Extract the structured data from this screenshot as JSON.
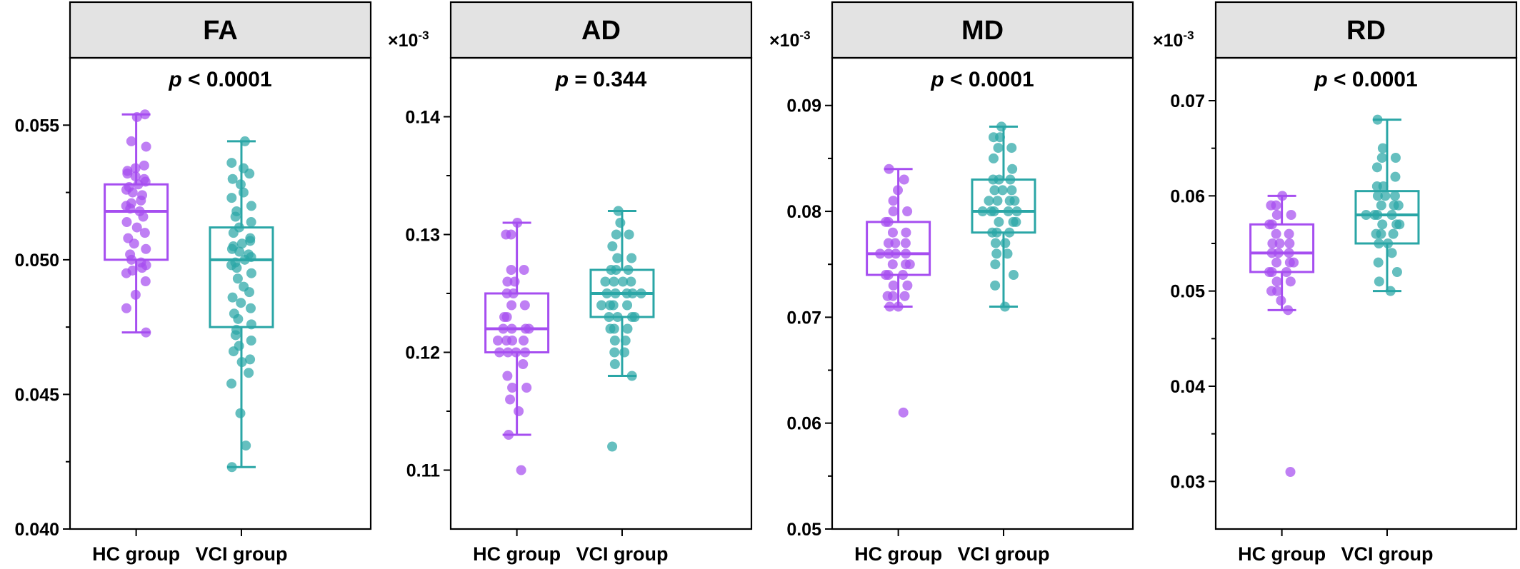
{
  "chart_data": [
    {
      "type": "box",
      "title": "FA",
      "annotation": "< 0.0001",
      "annotation_prefix": "p",
      "scale_label": "",
      "categories": [
        "HC group",
        "VCI group"
      ],
      "ylim": [
        0.04,
        0.0575
      ],
      "yticks": [
        0.04,
        0.045,
        0.05,
        0.055
      ],
      "ytick_labels": [
        "0.040",
        "0.045",
        "0.050",
        "0.055"
      ],
      "minor_yticks": [
        0.0425,
        0.0475,
        0.0525
      ],
      "series": [
        {
          "name": "HC group",
          "color": "#a64ef0",
          "whisker_low": 0.0473,
          "q1": 0.05,
          "median": 0.0518,
          "q3": 0.0528,
          "whisker_high": 0.0554,
          "points": [
            0.0554,
            0.0553,
            0.0544,
            0.0542,
            0.0535,
            0.0534,
            0.0533,
            0.0532,
            0.0531,
            0.053,
            0.0529,
            0.0528,
            0.0527,
            0.0526,
            0.0525,
            0.0524,
            0.0522,
            0.0521,
            0.052,
            0.0519,
            0.0518,
            0.0516,
            0.0514,
            0.0512,
            0.051,
            0.0508,
            0.0506,
            0.0504,
            0.0502,
            0.05,
            0.0499,
            0.0498,
            0.0497,
            0.0496,
            0.0495,
            0.0492,
            0.0487,
            0.0482,
            0.0473
          ]
        },
        {
          "name": "VCI group",
          "color": "#2aa6a6",
          "whisker_low": 0.0423,
          "q1": 0.0475,
          "median": 0.05,
          "q3": 0.0512,
          "whisker_high": 0.0544,
          "points": [
            0.0544,
            0.0536,
            0.0534,
            0.0532,
            0.053,
            0.0528,
            0.0525,
            0.0523,
            0.052,
            0.0518,
            0.0516,
            0.0514,
            0.0512,
            0.051,
            0.0508,
            0.0507,
            0.0506,
            0.0505,
            0.0504,
            0.0503,
            0.0502,
            0.0501,
            0.05,
            0.0499,
            0.0498,
            0.0497,
            0.0495,
            0.0493,
            0.049,
            0.0488,
            0.0486,
            0.0484,
            0.0482,
            0.048,
            0.0478,
            0.0476,
            0.0474,
            0.0472,
            0.047,
            0.0468,
            0.0466,
            0.0463,
            0.0462,
            0.0458,
            0.0454,
            0.0443,
            0.0431,
            0.0423
          ]
        }
      ]
    },
    {
      "type": "box",
      "title": "AD",
      "annotation": "= 0.344",
      "annotation_prefix": "p",
      "scale_label": "×10",
      "scale_exponent": "-3",
      "categories": [
        "HC group",
        "VCI group"
      ],
      "ylim": [
        0.105,
        0.145
      ],
      "yticks": [
        0.11,
        0.12,
        0.13,
        0.14
      ],
      "ytick_labels": [
        "0.11",
        "0.12",
        "0.13",
        "0.14"
      ],
      "minor_yticks": [
        0.115,
        0.125,
        0.135
      ],
      "series": [
        {
          "name": "HC group",
          "color": "#a64ef0",
          "whisker_low": 0.113,
          "q1": 0.12,
          "median": 0.122,
          "q3": 0.125,
          "whisker_high": 0.131,
          "points": [
            0.131,
            0.13,
            0.13,
            0.127,
            0.127,
            0.126,
            0.126,
            0.125,
            0.125,
            0.124,
            0.124,
            0.123,
            0.123,
            0.122,
            0.122,
            0.122,
            0.122,
            0.121,
            0.121,
            0.121,
            0.121,
            0.12,
            0.12,
            0.12,
            0.12,
            0.119,
            0.118,
            0.117,
            0.117,
            0.116,
            0.115,
            0.113,
            0.11
          ]
        },
        {
          "name": "VCI group",
          "color": "#2aa6a6",
          "whisker_low": 0.118,
          "q1": 0.123,
          "median": 0.125,
          "q3": 0.127,
          "whisker_high": 0.132,
          "points": [
            0.132,
            0.131,
            0.13,
            0.13,
            0.129,
            0.128,
            0.128,
            0.127,
            0.127,
            0.127,
            0.126,
            0.126,
            0.126,
            0.126,
            0.125,
            0.125,
            0.125,
            0.125,
            0.125,
            0.124,
            0.124,
            0.124,
            0.124,
            0.123,
            0.123,
            0.123,
            0.123,
            0.122,
            0.122,
            0.122,
            0.121,
            0.121,
            0.12,
            0.12,
            0.119,
            0.118,
            0.112
          ]
        }
      ]
    },
    {
      "type": "box",
      "title": "MD",
      "annotation": "< 0.0001",
      "annotation_prefix": "p",
      "scale_label": "×10",
      "scale_exponent": "-3",
      "categories": [
        "HC group",
        "VCI group"
      ],
      "ylim": [
        0.05,
        0.0945
      ],
      "yticks": [
        0.05,
        0.06,
        0.07,
        0.08,
        0.09
      ],
      "ytick_labels": [
        "0.05",
        "0.06",
        "0.07",
        "0.08",
        "0.09"
      ],
      "minor_yticks": [
        0.055,
        0.065,
        0.075,
        0.085
      ],
      "series": [
        {
          "name": "HC group",
          "color": "#a64ef0",
          "whisker_low": 0.071,
          "q1": 0.074,
          "median": 0.076,
          "q3": 0.079,
          "whisker_high": 0.084,
          "points": [
            0.084,
            0.083,
            0.082,
            0.081,
            0.08,
            0.08,
            0.079,
            0.079,
            0.078,
            0.078,
            0.077,
            0.077,
            0.077,
            0.076,
            0.076,
            0.076,
            0.076,
            0.075,
            0.075,
            0.075,
            0.074,
            0.074,
            0.074,
            0.073,
            0.073,
            0.072,
            0.072,
            0.072,
            0.071,
            0.071,
            0.061
          ]
        },
        {
          "name": "VCI group",
          "color": "#2aa6a6",
          "whisker_low": 0.071,
          "q1": 0.078,
          "median": 0.08,
          "q3": 0.083,
          "whisker_high": 0.088,
          "points": [
            0.088,
            0.087,
            0.087,
            0.086,
            0.086,
            0.085,
            0.084,
            0.083,
            0.083,
            0.083,
            0.082,
            0.082,
            0.082,
            0.081,
            0.081,
            0.081,
            0.081,
            0.08,
            0.08,
            0.08,
            0.08,
            0.08,
            0.079,
            0.079,
            0.079,
            0.078,
            0.078,
            0.078,
            0.077,
            0.077,
            0.076,
            0.076,
            0.075,
            0.074,
            0.073,
            0.071
          ]
        }
      ]
    },
    {
      "type": "box",
      "title": "RD",
      "annotation": "< 0.0001",
      "annotation_prefix": "p",
      "scale_label": "×10",
      "scale_exponent": "-3",
      "categories": [
        "HC group",
        "VCI group"
      ],
      "ylim": [
        0.025,
        0.0745
      ],
      "yticks": [
        0.03,
        0.04,
        0.05,
        0.06,
        0.07
      ],
      "ytick_labels": [
        "0.03",
        "0.04",
        "0.05",
        "0.06",
        "0.07"
      ],
      "minor_yticks": [
        0.035,
        0.045,
        0.055,
        0.065
      ],
      "series": [
        {
          "name": "HC group",
          "color": "#a64ef0",
          "whisker_low": 0.048,
          "q1": 0.052,
          "median": 0.054,
          "q3": 0.057,
          "whisker_high": 0.06,
          "points": [
            0.06,
            0.059,
            0.059,
            0.058,
            0.058,
            0.057,
            0.057,
            0.056,
            0.056,
            0.055,
            0.055,
            0.055,
            0.054,
            0.054,
            0.054,
            0.053,
            0.053,
            0.053,
            0.052,
            0.052,
            0.052,
            0.051,
            0.051,
            0.05,
            0.05,
            0.049,
            0.048,
            0.031
          ]
        },
        {
          "name": "VCI group",
          "color": "#2aa6a6",
          "whisker_low": 0.05,
          "q1": 0.055,
          "median": 0.058,
          "q3": 0.0605,
          "whisker_high": 0.068,
          "points": [
            0.068,
            0.065,
            0.064,
            0.064,
            0.063,
            0.062,
            0.061,
            0.061,
            0.06,
            0.06,
            0.06,
            0.059,
            0.059,
            0.059,
            0.058,
            0.058,
            0.058,
            0.058,
            0.057,
            0.057,
            0.057,
            0.056,
            0.056,
            0.056,
            0.055,
            0.055,
            0.054,
            0.053,
            0.052,
            0.051,
            0.05
          ]
        }
      ]
    }
  ]
}
